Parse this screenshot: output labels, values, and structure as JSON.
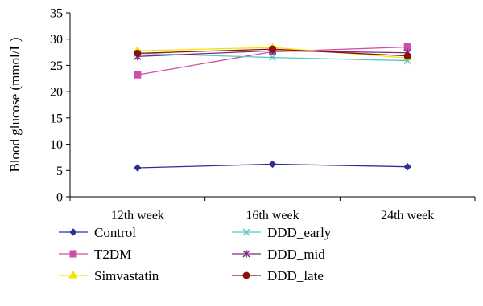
{
  "chart_data": {
    "type": "line",
    "title": "",
    "xlabel": "",
    "ylabel": "Blood glucose (mmol/L)",
    "categories": [
      "12th week",
      "16th week",
      "24th week"
    ],
    "ylim": [
      0,
      35
    ],
    "yticks": [
      0,
      5,
      10,
      15,
      20,
      25,
      30,
      35
    ],
    "grid": false,
    "legend_position": "bottom",
    "series": [
      {
        "name": "Control",
        "values": [
          5.5,
          6.2,
          5.7
        ],
        "color": "#2e3192",
        "marker": "diamond"
      },
      {
        "name": "T2DM",
        "values": [
          23.2,
          27.6,
          28.5
        ],
        "color": "#cc4fa8",
        "marker": "square"
      },
      {
        "name": "Simvastatin",
        "values": [
          27.8,
          28.4,
          26.4
        ],
        "color": "#f2e600",
        "marker": "triangle"
      },
      {
        "name": "DDD_early",
        "values": [
          27.3,
          26.5,
          25.9
        ],
        "color": "#5cc5c5",
        "marker": "x"
      },
      {
        "name": "DDD_mid",
        "values": [
          26.7,
          27.8,
          27.4
        ],
        "color": "#7a2a80",
        "marker": "star"
      },
      {
        "name": "DDD_late",
        "values": [
          27.3,
          28.1,
          26.8
        ],
        "color": "#8b1010",
        "marker": "circle"
      }
    ]
  }
}
